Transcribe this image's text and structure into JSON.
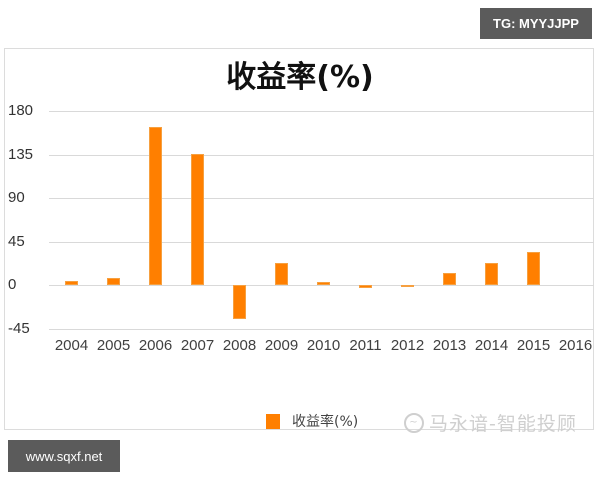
{
  "badges": {
    "top_right": "TG: MYYJJPP",
    "bottom_left": "www.sqxf.net"
  },
  "watermark": {
    "icon": "chat-bubble-icon",
    "text": "马永谙-智能投顾"
  },
  "colors": {
    "bar": "#ff7f00",
    "grid": "#d9d9d9",
    "badge_bg": "#5b5b5b"
  },
  "chart_data": {
    "type": "bar",
    "title": "收益率(%)",
    "xlabel": "",
    "ylabel": "",
    "categories": [
      "2004",
      "2005",
      "2006",
      "2007",
      "2008",
      "2009",
      "2010",
      "2011",
      "2012",
      "2013",
      "2014",
      "2015",
      "2016"
    ],
    "series": [
      {
        "name": "收益率(%)",
        "values": [
          4,
          7,
          163,
          136,
          -35,
          23,
          3,
          -3,
          -1,
          12,
          23,
          34,
          0
        ]
      }
    ],
    "yticks": [
      "180",
      "135",
      "90",
      "45",
      "0",
      "-45"
    ],
    "ylim": [
      -45,
      180
    ],
    "grid": true,
    "legend_position": "bottom"
  }
}
